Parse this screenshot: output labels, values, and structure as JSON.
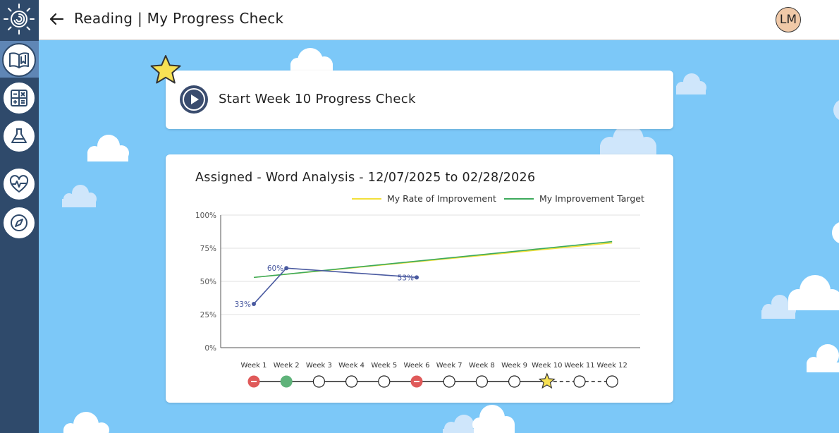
{
  "header": {
    "title": "Reading | My Progress Check",
    "avatar_initials": "LM"
  },
  "sidebar": {
    "items": [
      {
        "name": "reading",
        "icon": "book-icon",
        "active": true
      },
      {
        "name": "math",
        "icon": "calculator-icon",
        "active": false
      },
      {
        "name": "science",
        "icon": "flask-icon",
        "active": false
      },
      {
        "name": "wellness",
        "icon": "heart-pulse-icon",
        "active": false
      },
      {
        "name": "explore",
        "icon": "compass-icon",
        "active": false
      }
    ]
  },
  "start_card": {
    "label": "Start Week 10 Progress Check"
  },
  "colors": {
    "sidebar": "#2f4a6b",
    "sky": "#7cc8f8",
    "rate": "#f2e03a",
    "target": "#3daa5c",
    "score": "#4a5aa0",
    "miss": "#e05a5a",
    "done": "#5fb37a"
  },
  "chart_data": {
    "type": "line",
    "title": "Assigned - Word Analysis - 12/07/2025 to 02/28/2026",
    "categories": [
      "Week 1",
      "Week 2",
      "Week 3",
      "Week 4",
      "Week 5",
      "Week 6",
      "Week 7",
      "Week 8",
      "Week 9",
      "Week 10",
      "Week 11",
      "Week 12"
    ],
    "y_ticks": [
      "100%",
      "75%",
      "50%",
      "25%",
      "0%"
    ],
    "ylim": [
      0,
      100
    ],
    "series": [
      {
        "name": "My Rate of Improvement",
        "color": "#f2e03a",
        "values": [
          53,
          null,
          null,
          null,
          null,
          null,
          null,
          null,
          null,
          null,
          null,
          79
        ]
      },
      {
        "name": "My Improvement Target",
        "color": "#3daa5c",
        "values": [
          53,
          null,
          null,
          null,
          null,
          null,
          null,
          null,
          null,
          null,
          null,
          80
        ]
      },
      {
        "name": "",
        "color": "#4a5aa0",
        "values": [
          33,
          60,
          null,
          null,
          null,
          53,
          null,
          null,
          null,
          null,
          null,
          null
        ],
        "labels": [
          "33%",
          "60%",
          "",
          "",
          "",
          "53%",
          "",
          "",
          "",
          "",
          "",
          ""
        ]
      }
    ],
    "legend_position": "top-right",
    "week_status": [
      "missed",
      "complete",
      "open",
      "open",
      "open",
      "missed",
      "open",
      "open",
      "open",
      "current",
      "open",
      "open"
    ]
  }
}
